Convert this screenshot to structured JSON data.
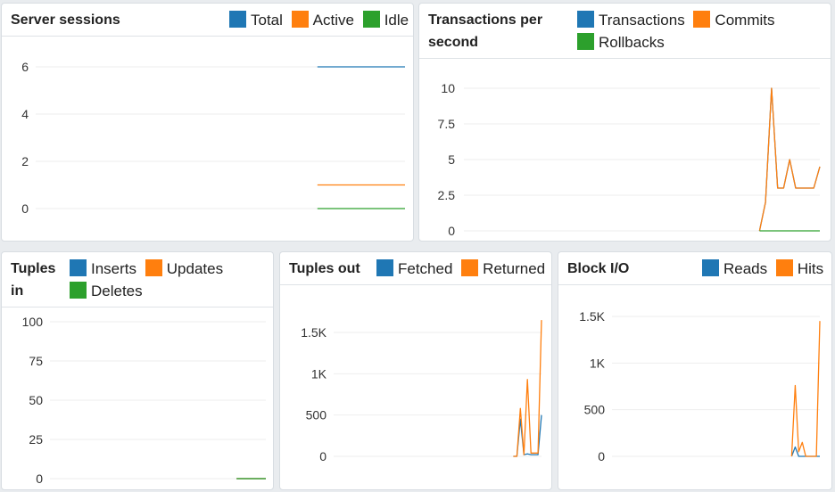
{
  "colors": {
    "total": "#1f77b4",
    "active": "#ff7f0e",
    "idle": "#2ca02c"
  },
  "panels": {
    "server_sessions": {
      "title": "Server sessions",
      "legend": [
        "Total",
        "Active",
        "Idle"
      ]
    },
    "transactions": {
      "title_line1": "Transactions per",
      "title_line2": "second",
      "legend": [
        "Transactions",
        "Commits",
        "Rollbacks"
      ]
    },
    "tuples_in": {
      "title_line1": "Tuples",
      "title_line2": "in",
      "legend": [
        "Inserts",
        "Updates",
        "Deletes"
      ]
    },
    "tuples_out": {
      "title": "Tuples out",
      "legend": [
        "Fetched",
        "Returned"
      ]
    },
    "block_io": {
      "title": "Block I/O",
      "legend": [
        "Reads",
        "Hits"
      ]
    }
  },
  "chart_data": [
    {
      "id": "server_sessions",
      "type": "line",
      "title": "Server sessions",
      "yticks": [
        "0",
        "2",
        "4",
        "6"
      ],
      "ylim": [
        0,
        6.8
      ],
      "n": 60,
      "series": [
        {
          "name": "Total",
          "color": "#1f77b4",
          "points": [
            [
              45,
              6
            ],
            [
              59,
              6
            ]
          ]
        },
        {
          "name": "Active",
          "color": "#ff7f0e",
          "points": [
            [
              45,
              1
            ],
            [
              59,
              1
            ]
          ]
        },
        {
          "name": "Idle",
          "color": "#2ca02c",
          "points": [
            [
              45,
              0
            ],
            [
              59,
              0
            ]
          ]
        }
      ]
    },
    {
      "id": "transactions",
      "type": "line",
      "title": "Transactions per second",
      "yticks": [
        "0",
        "2.5",
        "5",
        "7.5",
        "10"
      ],
      "ylim": [
        0,
        11
      ],
      "n": 60,
      "series": [
        {
          "name": "Transactions",
          "color": "#1f77b4",
          "points": [
            [
              49,
              0
            ],
            [
              50,
              2
            ],
            [
              51,
              10
            ],
            [
              52,
              3
            ],
            [
              53,
              3
            ],
            [
              54,
              5
            ],
            [
              55,
              3
            ],
            [
              56,
              3
            ],
            [
              57,
              3
            ],
            [
              58,
              3
            ],
            [
              59,
              4.5
            ]
          ]
        },
        {
          "name": "Commits",
          "color": "#ff7f0e",
          "points": [
            [
              49,
              0
            ],
            [
              50,
              2
            ],
            [
              51,
              10
            ],
            [
              52,
              3
            ],
            [
              53,
              3
            ],
            [
              54,
              5
            ],
            [
              55,
              3
            ],
            [
              56,
              3
            ],
            [
              57,
              3
            ],
            [
              58,
              3
            ],
            [
              59,
              4.5
            ]
          ]
        },
        {
          "name": "Rollbacks",
          "color": "#2ca02c",
          "points": [
            [
              49,
              0
            ],
            [
              59,
              0
            ]
          ]
        }
      ]
    },
    {
      "id": "tuples_in",
      "type": "line",
      "title": "Tuples in",
      "yticks": [
        "0",
        "25",
        "50",
        "75",
        "100"
      ],
      "ylim": [
        0,
        106
      ],
      "n": 60,
      "series": [
        {
          "name": "Inserts",
          "color": "#1f77b4",
          "points": [
            [
              51,
              0
            ],
            [
              59,
              0
            ]
          ]
        },
        {
          "name": "Updates",
          "color": "#ff7f0e",
          "points": [
            [
              51,
              0
            ],
            [
              59,
              0
            ]
          ]
        },
        {
          "name": "Deletes",
          "color": "#2ca02c",
          "points": [
            [
              51,
              0
            ],
            [
              59,
              0
            ]
          ]
        }
      ]
    },
    {
      "id": "tuples_out",
      "type": "line",
      "title": "Tuples out",
      "yticks": [
        "0",
        "500",
        "1K",
        "1.5K"
      ],
      "ylim": [
        0,
        1700
      ],
      "n": 60,
      "series": [
        {
          "name": "Fetched",
          "color": "#1f77b4",
          "points": [
            [
              51,
              0
            ],
            [
              52,
              0
            ],
            [
              53,
              450
            ],
            [
              54,
              20
            ],
            [
              55,
              30
            ],
            [
              56,
              20
            ],
            [
              57,
              20
            ],
            [
              58,
              20
            ],
            [
              59,
              500
            ]
          ]
        },
        {
          "name": "Returned",
          "color": "#ff7f0e",
          "points": [
            [
              51,
              0
            ],
            [
              52,
              0
            ],
            [
              53,
              580
            ],
            [
              54,
              20
            ],
            [
              55,
              930
            ],
            [
              56,
              40
            ],
            [
              57,
              40
            ],
            [
              58,
              40
            ],
            [
              59,
              1650
            ]
          ]
        }
      ]
    },
    {
      "id": "block_io",
      "type": "line",
      "title": "Block I/O",
      "yticks": [
        "0",
        "500",
        "1K",
        "1.5K"
      ],
      "ylim": [
        0,
        1650
      ],
      "n": 60,
      "series": [
        {
          "name": "Reads",
          "color": "#1f77b4",
          "points": [
            [
              51,
              0
            ],
            [
              52,
              100
            ],
            [
              53,
              0
            ],
            [
              54,
              0
            ],
            [
              55,
              0
            ],
            [
              56,
              0
            ],
            [
              57,
              0
            ],
            [
              58,
              0
            ],
            [
              59,
              0
            ]
          ]
        },
        {
          "name": "Hits",
          "color": "#ff7f0e",
          "points": [
            [
              51,
              0
            ],
            [
              52,
              760
            ],
            [
              53,
              50
            ],
            [
              54,
              150
            ],
            [
              55,
              0
            ],
            [
              56,
              0
            ],
            [
              57,
              0
            ],
            [
              58,
              0
            ],
            [
              59,
              1450
            ]
          ]
        }
      ]
    }
  ]
}
